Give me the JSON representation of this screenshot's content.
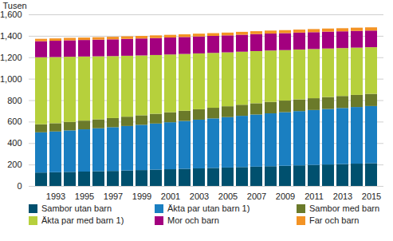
{
  "chart_data": {
    "type": "bar",
    "stacked": true,
    "y_label": "Tusen",
    "categories": [
      null,
      "1993",
      null,
      "1995",
      null,
      "1997",
      null,
      "1999",
      null,
      "2001",
      null,
      "2003",
      null,
      "2005",
      null,
      "2007",
      null,
      "2009",
      null,
      "2011",
      null,
      "2013",
      null,
      "2015"
    ],
    "series": [
      {
        "name": "Sambor utan barn",
        "color": "#00506e",
        "values": [
          125,
          128,
          131,
          134,
          137,
          140,
          144,
          148,
          152,
          156,
          160,
          164,
          168,
          172,
          176,
          180,
          184,
          188,
          192,
          196,
          200,
          204,
          208,
          212
        ]
      },
      {
        "name": "Äkta par utan barn 1)",
        "color": "#1a7fc1",
        "values": [
          375,
          380,
          387,
          394,
          401,
          408,
          415,
          422,
          430,
          438,
          446,
          454,
          462,
          470,
          478,
          486,
          493,
          500,
          506,
          512,
          518,
          523,
          528,
          533
        ]
      },
      {
        "name": "Sambor med barn",
        "color": "#6b7a2a",
        "values": [
          75,
          77,
          79,
          81,
          83,
          85,
          87,
          89,
          91,
          93,
          95,
          97,
          99,
          101,
          103,
          105,
          107,
          108,
          109,
          110,
          111,
          112,
          113,
          114
        ]
      },
      {
        "name": "Äkta par med barn 1)",
        "color": "#b6d03c",
        "values": [
          625,
          617,
          608,
          598,
          588,
          578,
          568,
          558,
          548,
          539,
          530,
          521,
          512,
          503,
          495,
          487,
          479,
          471,
          465,
          459,
          453,
          447,
          441,
          435
        ]
      },
      {
        "name": "Mor och barn",
        "color": "#a3007f",
        "values": [
          150,
          152,
          153,
          154,
          155,
          156,
          157,
          158,
          158,
          158,
          158,
          158,
          158,
          158,
          158,
          158,
          158,
          158,
          158,
          157,
          157,
          156,
          156,
          155
        ]
      },
      {
        "name": "Far och barn",
        "color": "#f39325",
        "values": [
          22,
          22,
          23,
          23,
          23,
          24,
          24,
          24,
          25,
          25,
          25,
          26,
          26,
          26,
          27,
          27,
          28,
          28,
          28,
          29,
          29,
          29,
          30,
          30
        ]
      }
    ],
    "ylim": [
      0,
      1600
    ],
    "yticks": [
      0,
      200,
      400,
      600,
      800,
      1000,
      1200,
      1400,
      1600
    ],
    "grid": true,
    "legend": "bottom"
  }
}
